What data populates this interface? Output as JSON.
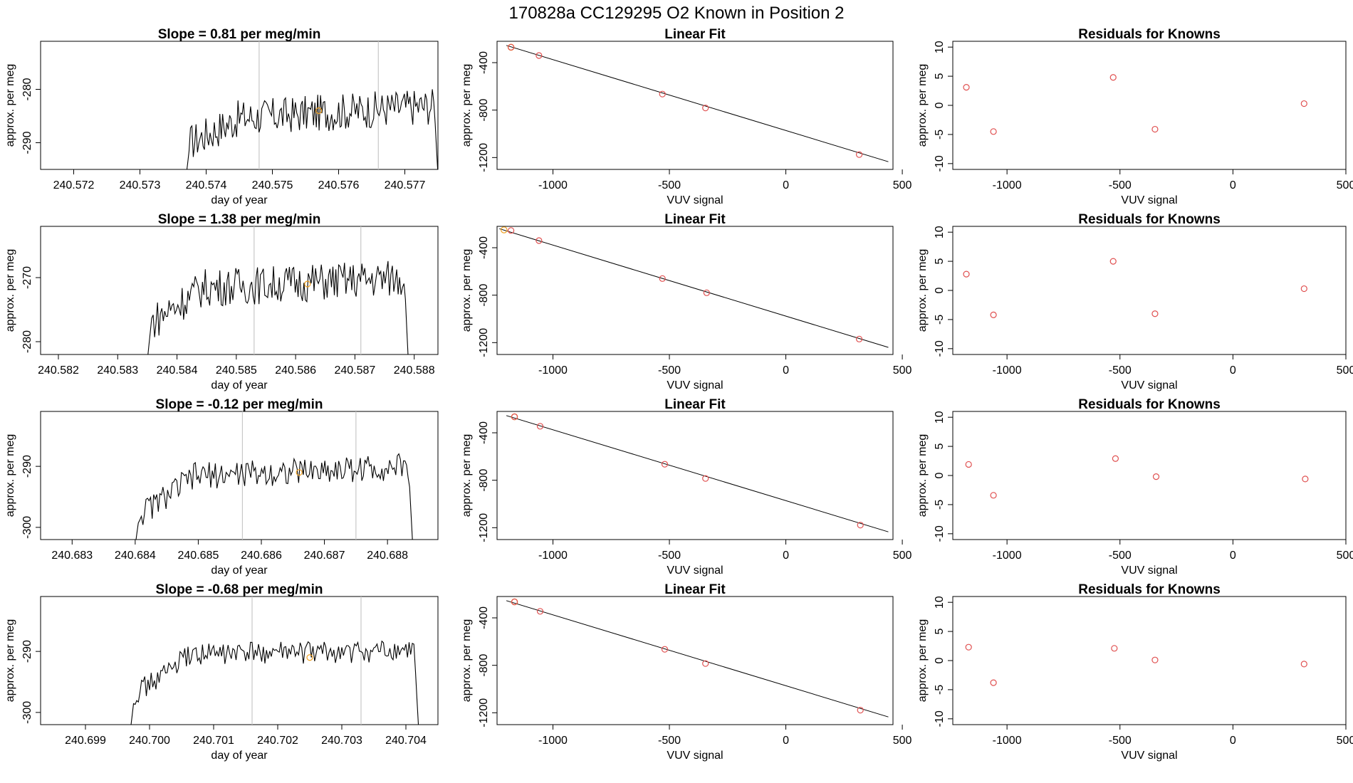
{
  "title": "170828a      CC129295   O2 Known in Position  2",
  "colors": {
    "known_point": "#e05050",
    "highlight_point": "#f0a020",
    "line": "#000000",
    "marker_line": "#c8c8c8"
  },
  "chart_data": [
    {
      "type": "line",
      "title": "Slope =  0.81  per meg/min",
      "xlabel": "day of year",
      "ylabel": "approx. per meg",
      "xlim": [
        240.5715,
        240.5775
      ],
      "ylim": [
        -295,
        -271
      ],
      "xticks": [
        "240.572",
        "240.573",
        "240.574",
        "240.575",
        "240.576",
        "240.577"
      ],
      "yticks": [
        "-280",
        "-290"
      ],
      "xtick_values": [
        240.572,
        240.573,
        240.574,
        240.575,
        240.576,
        240.577
      ],
      "ytick_values": [
        -280,
        -290
      ],
      "vertical_lines": [
        240.5748,
        240.5766
      ],
      "series_x_range": [
        240.5737,
        240.5775
      ],
      "series_shape": {
        "start": -296,
        "edge_rise": -290,
        "plateau": [
          -286,
          -283
        ],
        "noise": 3.5,
        "end_drop": -296
      },
      "highlight_point": {
        "x": 240.5757,
        "y": -284
      }
    },
    {
      "type": "scatter",
      "title": "Linear Fit",
      "xlabel": "VUV signal",
      "ylabel": "approx. per meg",
      "xlim": [
        -1240,
        460
      ],
      "ylim": [
        -1300,
        -220
      ],
      "xticks": [
        "-1000",
        "-500",
        "0",
        "500"
      ],
      "yticks": [
        "-400",
        "-800",
        "-1200"
      ],
      "xtick_values": [
        -1000,
        -500,
        0,
        500
      ],
      "ytick_values": [
        -400,
        -800,
        -1200
      ],
      "fit_line": {
        "x": [
          -1200,
          440
        ],
        "y": [
          -255,
          -1235
        ]
      },
      "points": {
        "x": [
          -1180,
          -1060,
          -530,
          -345,
          315
        ],
        "y": [
          -270,
          -340,
          -665,
          -782,
          -1175
        ]
      },
      "highlight_point": {
        "x": -1180,
        "y": -270
      }
    },
    {
      "type": "scatter",
      "title": "Residuals for Knowns",
      "xlabel": "VUV signal",
      "ylabel": "approx. per meg",
      "xlim": [
        -1240,
        500
      ],
      "ylim": [
        -11,
        11
      ],
      "xticks": [
        "-1000",
        "-500",
        "0",
        "500"
      ],
      "yticks": [
        "10",
        "5",
        "0",
        "-5",
        "-10"
      ],
      "xtick_values": [
        -1000,
        -500,
        0,
        500
      ],
      "ytick_values": [
        10,
        5,
        0,
        -5,
        -10
      ],
      "points": {
        "x": [
          -1180,
          -1060,
          -530,
          -345,
          315
        ],
        "y": [
          3.1,
          -4.5,
          4.8,
          -4.1,
          0.3
        ]
      }
    },
    {
      "type": "line",
      "title": "Slope =  1.38  per meg/min",
      "xlabel": "day of year",
      "ylabel": "approx. per meg",
      "xlim": [
        240.5817,
        240.5884
      ],
      "ylim": [
        -282,
        -262
      ],
      "xticks": [
        "240.582",
        "240.583",
        "240.584",
        "240.585",
        "240.586",
        "240.587",
        "240.588"
      ],
      "yticks": [
        "-270",
        "-280"
      ],
      "xtick_values": [
        240.582,
        240.583,
        240.584,
        240.585,
        240.586,
        240.587,
        240.588
      ],
      "ytick_values": [
        -270,
        -280
      ],
      "vertical_lines": [
        240.5853,
        240.5871
      ],
      "series_x_range": [
        240.5835,
        240.5879
      ],
      "series_shape": {
        "start": -283,
        "edge_rise": -277,
        "plateau": [
          -272,
          -270
        ],
        "noise": 3.0,
        "end_drop": -283
      },
      "highlight_point": {
        "x": 240.5862,
        "y": -271
      }
    },
    {
      "type": "scatter",
      "title": "Linear Fit",
      "xlabel": "VUV signal",
      "ylabel": "approx. per meg",
      "xlim": [
        -1240,
        460
      ],
      "ylim": [
        -1300,
        -220
      ],
      "xticks": [
        "-1000",
        "-500",
        "0",
        "500"
      ],
      "yticks": [
        "-400",
        "-800",
        "-1200"
      ],
      "xtick_values": [
        -1000,
        -500,
        0,
        500
      ],
      "ytick_values": [
        -400,
        -800,
        -1200
      ],
      "fit_line": {
        "x": [
          -1230,
          440
        ],
        "y": [
          -240,
          -1240
        ]
      },
      "points": {
        "x": [
          -1180,
          -1060,
          -530,
          -340,
          315
        ],
        "y": [
          -255,
          -340,
          -660,
          -780,
          -1170
        ]
      },
      "highlight_point": {
        "x": -1210,
        "y": -250
      }
    },
    {
      "type": "scatter",
      "title": "Residuals for Knowns",
      "xlabel": "VUV signal",
      "ylabel": "approx. per meg",
      "xlim": [
        -1240,
        500
      ],
      "ylim": [
        -11,
        11
      ],
      "xticks": [
        "-1000",
        "-500",
        "0",
        "500"
      ],
      "yticks": [
        "10",
        "5",
        "0",
        "-5",
        "-10"
      ],
      "xtick_values": [
        -1000,
        -500,
        0,
        500
      ],
      "ytick_values": [
        10,
        5,
        0,
        -5,
        -10
      ],
      "points": {
        "x": [
          -1180,
          -1060,
          -530,
          -345,
          315
        ],
        "y": [
          2.8,
          -4.2,
          5.0,
          -4.0,
          0.3
        ]
      }
    },
    {
      "type": "line",
      "title": "Slope =  -0.12  per meg/min",
      "xlabel": "day of year",
      "ylabel": "approx. per meg",
      "xlim": [
        240.6825,
        240.6888
      ],
      "ylim": [
        -302,
        -281
      ],
      "xticks": [
        "240.683",
        "240.684",
        "240.685",
        "240.686",
        "240.687",
        "240.688"
      ],
      "yticks": [
        "-290",
        "-300"
      ],
      "xtick_values": [
        240.683,
        240.684,
        240.685,
        240.686,
        240.687,
        240.688
      ],
      "ytick_values": [
        -290,
        -300
      ],
      "vertical_lines": [
        240.6857,
        240.6875
      ],
      "series_x_range": [
        240.684,
        240.6884
      ],
      "series_shape": {
        "start": -303,
        "edge_rise": -298,
        "plateau": [
          -292,
          -290
        ],
        "noise": 2.2,
        "end_drop": -303
      },
      "highlight_point": {
        "x": 240.6866,
        "y": -291
      }
    },
    {
      "type": "scatter",
      "title": "Linear Fit",
      "xlabel": "VUV signal",
      "ylabel": "approx. per meg",
      "xlim": [
        -1240,
        460
      ],
      "ylim": [
        -1300,
        -220
      ],
      "xticks": [
        "-1000",
        "-500",
        "0",
        "500"
      ],
      "yticks": [
        "-400",
        "-800",
        "-1200"
      ],
      "xtick_values": [
        -1000,
        -500,
        0,
        500
      ],
      "ytick_values": [
        -400,
        -800,
        -1200
      ],
      "fit_line": {
        "x": [
          -1200,
          440
        ],
        "y": [
          -255,
          -1235
        ]
      },
      "points": {
        "x": [
          -1165,
          -1055,
          -520,
          -345,
          320
        ],
        "y": [
          -265,
          -345,
          -665,
          -785,
          -1178
        ]
      },
      "highlight_point": {
        "x": -1165,
        "y": -265
      }
    },
    {
      "type": "scatter",
      "title": "Residuals for Knowns",
      "xlabel": "VUV signal",
      "ylabel": "approx. per meg",
      "xlim": [
        -1240,
        500
      ],
      "ylim": [
        -11,
        11
      ],
      "xticks": [
        "-1000",
        "-500",
        "0",
        "500"
      ],
      "yticks": [
        "10",
        "5",
        "0",
        "-5",
        "-10"
      ],
      "xtick_values": [
        -1000,
        -500,
        0,
        500
      ],
      "ytick_values": [
        10,
        5,
        0,
        -5,
        -10
      ],
      "points": {
        "x": [
          -1170,
          -1060,
          -520,
          -340,
          320
        ],
        "y": [
          1.9,
          -3.4,
          2.9,
          -0.2,
          -0.6
        ]
      }
    },
    {
      "type": "line",
      "title": "Slope =  -0.68  per meg/min",
      "xlabel": "day of year",
      "ylabel": "approx. per meg",
      "xlim": [
        240.6983,
        240.7045
      ],
      "ylim": [
        -302,
        -281
      ],
      "xticks": [
        "240.699",
        "240.700",
        "240.701",
        "240.702",
        "240.703",
        "240.704"
      ],
      "yticks": [
        "-290",
        "-300"
      ],
      "xtick_values": [
        240.699,
        240.7,
        240.701,
        240.702,
        240.703,
        240.704
      ],
      "ytick_values": [
        -290,
        -300
      ],
      "vertical_lines": [
        240.7016,
        240.7033
      ],
      "series_x_range": [
        240.6997,
        240.7042
      ],
      "series_shape": {
        "start": -303,
        "edge_rise": -297,
        "plateau": [
          -290.5,
          -290
        ],
        "noise": 1.8,
        "end_drop": -303
      },
      "highlight_point": {
        "x": 240.7025,
        "y": -291
      }
    },
    {
      "type": "scatter",
      "title": "Linear Fit",
      "xlabel": "VUV signal",
      "ylabel": "approx. per meg",
      "xlim": [
        -1240,
        460
      ],
      "ylim": [
        -1300,
        -220
      ],
      "xticks": [
        "-1000",
        "-500",
        "0",
        "500"
      ],
      "yticks": [
        "-400",
        "-800",
        "-1200"
      ],
      "xtick_values": [
        -1000,
        -500,
        0,
        500
      ],
      "ytick_values": [
        -400,
        -800,
        -1200
      ],
      "fit_line": {
        "x": [
          -1200,
          440
        ],
        "y": [
          -255,
          -1235
        ]
      },
      "points": {
        "x": [
          -1165,
          -1055,
          -520,
          -345,
          320
        ],
        "y": [
          -265,
          -345,
          -665,
          -785,
          -1178
        ]
      },
      "highlight_point": {
        "x": -1165,
        "y": -265
      }
    },
    {
      "type": "scatter",
      "title": "Residuals for Knowns",
      "xlabel": "VUV signal",
      "ylabel": "approx. per meg",
      "xlim": [
        -1240,
        500
      ],
      "ylim": [
        -11,
        11
      ],
      "xticks": [
        "-1000",
        "-500",
        "0",
        "500"
      ],
      "yticks": [
        "10",
        "5",
        "0",
        "-5",
        "-10"
      ],
      "xtick_values": [
        -1000,
        -500,
        0,
        500
      ],
      "ytick_values": [
        10,
        5,
        0,
        -5,
        -10
      ],
      "points": {
        "x": [
          -1170,
          -1060,
          -525,
          -345,
          315
        ],
        "y": [
          2.3,
          -3.8,
          2.1,
          0.1,
          -0.6
        ]
      }
    }
  ]
}
